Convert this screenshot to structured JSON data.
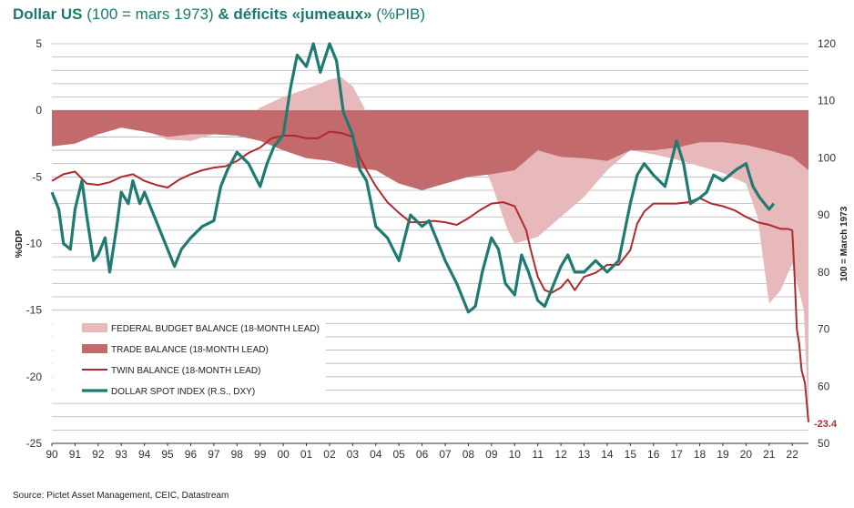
{
  "title": {
    "bold1": "Dollar US",
    "normal1": " (100 = mars 1973) ",
    "bold2": "& déficits «jumeaux»",
    "normal2": " (%PIB)"
  },
  "source": "Source: Pictet Asset Management, CEIC, Datastream",
  "colors": {
    "federal": "#e8b9bb",
    "trade": "#c26a6c",
    "twin": "#b02a2d",
    "dollar": "#1f7a72",
    "title": "#1a7a6e"
  },
  "chart_data": {
    "type": "area",
    "xlabel": "",
    "ylabel": "%GDP",
    "y2label": "100 = March 1973",
    "ylim": [
      -25,
      5
    ],
    "y2lim": [
      50,
      120
    ],
    "yticks": [
      5,
      0,
      -5,
      -10,
      -15,
      -20,
      -25
    ],
    "y2ticks": [
      120,
      110,
      100,
      90,
      80,
      70,
      60,
      50
    ],
    "xlim": [
      1990,
      2022.7
    ],
    "xtick_labels": [
      "90",
      "91",
      "92",
      "93",
      "94",
      "95",
      "96",
      "97",
      "98",
      "99",
      "00",
      "01",
      "02",
      "03",
      "04",
      "05",
      "06",
      "07",
      "08",
      "09",
      "10",
      "11",
      "12",
      "13",
      "14",
      "15",
      "16",
      "17",
      "18",
      "19",
      "20",
      "21",
      "22"
    ],
    "legend_position": "bottom-left",
    "annotation": "-23.4",
    "series": [
      {
        "name": "FEDERAL BUDGET BALANCE (18-MONTH LEAD)",
        "kind": "area",
        "axis": "left",
        "points": [
          [
            1990,
            -2.5
          ],
          [
            1991,
            -2.2
          ],
          [
            1992,
            -1.8
          ],
          [
            1993,
            -1.0
          ],
          [
            1994,
            -1.5
          ],
          [
            1995,
            -2.2
          ],
          [
            1996,
            -2.3
          ],
          [
            1997,
            -1.8
          ],
          [
            1998,
            -1.0
          ],
          [
            1999,
            0.2
          ],
          [
            2000,
            1.0
          ],
          [
            2001,
            1.6
          ],
          [
            2002,
            2.3
          ],
          [
            2002.5,
            2.5
          ],
          [
            2003,
            1.8
          ],
          [
            2003.5,
            0.2
          ],
          [
            2004,
            -2.8
          ],
          [
            2004.5,
            -3.5
          ],
          [
            2005,
            -3.6
          ],
          [
            2006,
            -3.0
          ],
          [
            2007,
            -2.5
          ],
          [
            2008,
            -1.5
          ],
          [
            2009,
            -5.5
          ],
          [
            2009.7,
            -9.0
          ],
          [
            2010,
            -10.0
          ],
          [
            2011,
            -9.5
          ],
          [
            2012,
            -8.0
          ],
          [
            2013,
            -6.5
          ],
          [
            2014,
            -4.5
          ],
          [
            2015,
            -3.0
          ],
          [
            2016,
            -3.3
          ],
          [
            2017,
            -3.7
          ],
          [
            2018,
            -4.2
          ],
          [
            2019,
            -4.7
          ],
          [
            2020,
            -5.5
          ],
          [
            2020.5,
            -8.0
          ],
          [
            2021,
            -14.5
          ],
          [
            2021.5,
            -13.5
          ],
          [
            2022,
            -11.5
          ],
          [
            2022.5,
            -15.0
          ],
          [
            2022.7,
            -23.0
          ]
        ]
      },
      {
        "name": "TRADE BALANCE (18-MONTH LEAD)",
        "kind": "area",
        "axis": "left",
        "points": [
          [
            1990,
            -2.7
          ],
          [
            1991,
            -2.5
          ],
          [
            1992,
            -1.8
          ],
          [
            1993,
            -1.3
          ],
          [
            1994,
            -1.6
          ],
          [
            1995,
            -2.0
          ],
          [
            1996,
            -1.8
          ],
          [
            1997,
            -1.8
          ],
          [
            1998,
            -1.9
          ],
          [
            1999,
            -2.3
          ],
          [
            2000,
            -3.0
          ],
          [
            2001,
            -3.6
          ],
          [
            2002,
            -3.8
          ],
          [
            2003,
            -4.3
          ],
          [
            2004,
            -4.5
          ],
          [
            2005,
            -5.5
          ],
          [
            2006,
            -6.0
          ],
          [
            2007,
            -5.5
          ],
          [
            2008,
            -5.0
          ],
          [
            2009,
            -4.8
          ],
          [
            2010,
            -4.5
          ],
          [
            2011,
            -3.0
          ],
          [
            2012,
            -3.5
          ],
          [
            2013,
            -3.6
          ],
          [
            2014,
            -3.8
          ],
          [
            2015,
            -3.0
          ],
          [
            2016,
            -3.0
          ],
          [
            2017,
            -2.8
          ],
          [
            2018,
            -2.4
          ],
          [
            2019,
            -2.4
          ],
          [
            2020,
            -2.6
          ],
          [
            2021,
            -3.0
          ],
          [
            2022,
            -3.5
          ],
          [
            2022.7,
            -4.5
          ]
        ]
      },
      {
        "name": "TWIN BALANCE (18-MONTH LEAD)",
        "kind": "line",
        "axis": "left",
        "points": [
          [
            1990,
            -5.3
          ],
          [
            1990.5,
            -4.8
          ],
          [
            1991,
            -4.6
          ],
          [
            1991.5,
            -5.5
          ],
          [
            1992,
            -5.6
          ],
          [
            1992.5,
            -5.4
          ],
          [
            1993,
            -5.0
          ],
          [
            1993.5,
            -4.8
          ],
          [
            1994,
            -5.3
          ],
          [
            1994.5,
            -5.6
          ],
          [
            1995,
            -5.8
          ],
          [
            1995.5,
            -5.2
          ],
          [
            1996,
            -4.8
          ],
          [
            1996.5,
            -4.5
          ],
          [
            1997,
            -4.3
          ],
          [
            1997.5,
            -4.2
          ],
          [
            1998,
            -3.8
          ],
          [
            1998.5,
            -3.2
          ],
          [
            1999,
            -2.8
          ],
          [
            1999.5,
            -2.1
          ],
          [
            2000,
            -1.9
          ],
          [
            2000.5,
            -1.9
          ],
          [
            2001,
            -2.1
          ],
          [
            2001.5,
            -2.1
          ],
          [
            2002,
            -1.6
          ],
          [
            2002.5,
            -1.7
          ],
          [
            2003,
            -2.0
          ],
          [
            2003.3,
            -3.5
          ],
          [
            2003.6,
            -4.5
          ],
          [
            2004,
            -5.7
          ],
          [
            2004.5,
            -6.9
          ],
          [
            2005,
            -7.7
          ],
          [
            2005.5,
            -8.4
          ],
          [
            2006,
            -8.4
          ],
          [
            2006.5,
            -8.3
          ],
          [
            2007,
            -8.4
          ],
          [
            2007.5,
            -8.6
          ],
          [
            2008,
            -8.1
          ],
          [
            2008.5,
            -7.5
          ],
          [
            2009,
            -7.0
          ],
          [
            2009.5,
            -6.9
          ],
          [
            2010,
            -7.2
          ],
          [
            2010.5,
            -9.0
          ],
          [
            2010.7,
            -10.5
          ],
          [
            2011,
            -12.5
          ],
          [
            2011.3,
            -13.5
          ],
          [
            2011.6,
            -13.7
          ],
          [
            2012,
            -13.3
          ],
          [
            2012.3,
            -12.7
          ],
          [
            2012.6,
            -13.5
          ],
          [
            2013,
            -12.5
          ],
          [
            2013.5,
            -12.2
          ],
          [
            2014,
            -11.6
          ],
          [
            2014.5,
            -11.6
          ],
          [
            2015,
            -10.5
          ],
          [
            2015.3,
            -8.5
          ],
          [
            2015.6,
            -7.6
          ],
          [
            2016,
            -7.0
          ],
          [
            2016.5,
            -7.0
          ],
          [
            2017,
            -7.0
          ],
          [
            2017.5,
            -6.9
          ],
          [
            2018,
            -6.6
          ],
          [
            2018.5,
            -7.0
          ],
          [
            2019,
            -7.2
          ],
          [
            2019.5,
            -7.5
          ],
          [
            2020,
            -8.0
          ],
          [
            2020.5,
            -8.4
          ],
          [
            2021,
            -8.6
          ],
          [
            2021.5,
            -8.9
          ],
          [
            2021.8,
            -8.9
          ],
          [
            2022,
            -9.0
          ],
          [
            2022.1,
            -12.5
          ],
          [
            2022.2,
            -16.5
          ],
          [
            2022.3,
            -17.5
          ],
          [
            2022.4,
            -19.5
          ],
          [
            2022.55,
            -20.5
          ],
          [
            2022.7,
            -23.4
          ]
        ]
      },
      {
        "name": "DOLLAR SPOT INDEX (R.S., DXY)",
        "kind": "line",
        "axis": "right",
        "points": [
          [
            1990,
            94
          ],
          [
            1990.3,
            91
          ],
          [
            1990.5,
            85
          ],
          [
            1990.8,
            84
          ],
          [
            1991,
            91
          ],
          [
            1991.3,
            96
          ],
          [
            1991.5,
            90
          ],
          [
            1991.8,
            82
          ],
          [
            1992,
            83
          ],
          [
            1992.3,
            86
          ],
          [
            1992.5,
            80
          ],
          [
            1992.8,
            88
          ],
          [
            1993,
            94
          ],
          [
            1993.3,
            92
          ],
          [
            1993.5,
            96
          ],
          [
            1993.8,
            92
          ],
          [
            1994,
            94
          ],
          [
            1994.5,
            89
          ],
          [
            1995,
            84
          ],
          [
            1995.3,
            81
          ],
          [
            1995.6,
            84
          ],
          [
            1996,
            86
          ],
          [
            1996.5,
            88
          ],
          [
            1997,
            89
          ],
          [
            1997.3,
            95
          ],
          [
            1997.6,
            98
          ],
          [
            1998,
            101
          ],
          [
            1998.5,
            99
          ],
          [
            1999,
            95
          ],
          [
            1999.3,
            99
          ],
          [
            1999.6,
            102
          ],
          [
            2000,
            104
          ],
          [
            2000.3,
            112
          ],
          [
            2000.6,
            118
          ],
          [
            2001,
            116
          ],
          [
            2001.3,
            120
          ],
          [
            2001.6,
            115
          ],
          [
            2002,
            120
          ],
          [
            2002.3,
            117
          ],
          [
            2002.6,
            108
          ],
          [
            2003,
            104
          ],
          [
            2003.3,
            98
          ],
          [
            2003.6,
            96
          ],
          [
            2004,
            88
          ],
          [
            2004.5,
            86
          ],
          [
            2005,
            82
          ],
          [
            2005.5,
            90
          ],
          [
            2006,
            88
          ],
          [
            2006.3,
            89
          ],
          [
            2006.6,
            86
          ],
          [
            2007,
            82
          ],
          [
            2007.5,
            78
          ],
          [
            2008,
            73
          ],
          [
            2008.3,
            74
          ],
          [
            2008.6,
            80
          ],
          [
            2009,
            86
          ],
          [
            2009.3,
            84
          ],
          [
            2009.6,
            78
          ],
          [
            2010,
            76
          ],
          [
            2010.3,
            83
          ],
          [
            2010.6,
            80
          ],
          [
            2011,
            75
          ],
          [
            2011.3,
            74
          ],
          [
            2011.6,
            77
          ],
          [
            2012,
            81
          ],
          [
            2012.3,
            83
          ],
          [
            2012.6,
            80
          ],
          [
            2013,
            80
          ],
          [
            2013.5,
            82
          ],
          [
            2014,
            80
          ],
          [
            2014.5,
            82
          ],
          [
            2015,
            92
          ],
          [
            2015.3,
            97
          ],
          [
            2015.6,
            99
          ],
          [
            2016,
            97
          ],
          [
            2016.5,
            95
          ],
          [
            2017,
            103
          ],
          [
            2017.3,
            99
          ],
          [
            2017.6,
            92
          ],
          [
            2018,
            93
          ],
          [
            2018.3,
            94
          ],
          [
            2018.6,
            97
          ],
          [
            2019,
            96
          ],
          [
            2019.3,
            97
          ],
          [
            2019.6,
            98
          ],
          [
            2020,
            99
          ],
          [
            2020.3,
            95
          ],
          [
            2020.6,
            93
          ],
          [
            2021,
            91
          ],
          [
            2021.2,
            92
          ]
        ]
      }
    ]
  }
}
